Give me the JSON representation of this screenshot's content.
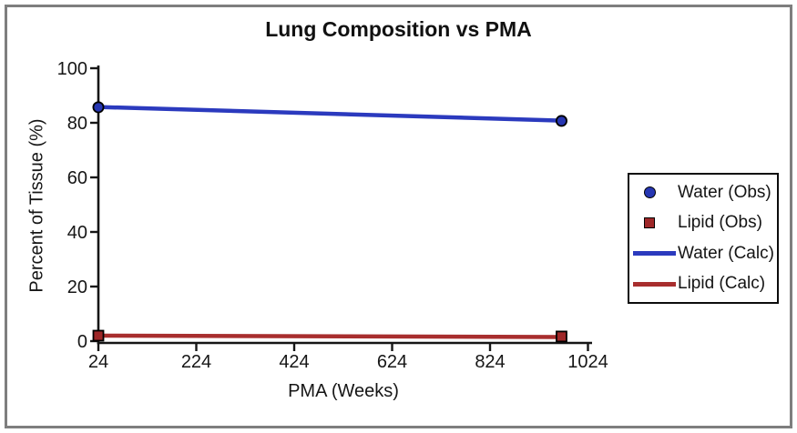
{
  "figure": {
    "background": "#ffffff",
    "border_color": "#7e7e7e"
  },
  "chart_data": {
    "type": "line",
    "title": "Lung Composition vs PMA",
    "xlabel": "PMA (Weeks)",
    "ylabel": "Percent of Tissue (%)",
    "xlim": [
      24,
      1024
    ],
    "ylim": [
      0,
      100
    ],
    "x_ticks": [
      24,
      224,
      424,
      624,
      824,
      1024
    ],
    "y_ticks": [
      0,
      20,
      40,
      60,
      80,
      100
    ],
    "grid": false,
    "legend_position": "right",
    "axis_color": "#161616",
    "series": [
      {
        "name": "Water (Obs)",
        "type": "scatter",
        "marker": "circle",
        "color": "#2636b2",
        "edge_color": "#000000",
        "points": [
          [
            24,
            85.7
          ],
          [
            970,
            80.7
          ]
        ]
      },
      {
        "name": "Lipid (Obs)",
        "type": "scatter",
        "marker": "square",
        "color": "#9e2728",
        "edge_color": "#000000",
        "points": [
          [
            24,
            2.0
          ],
          [
            970,
            1.7
          ]
        ]
      },
      {
        "name": "Water (Calc)",
        "type": "line",
        "color": "#2b3abe",
        "line_width": 4.5,
        "points": [
          [
            24,
            85.8
          ],
          [
            970,
            80.8
          ]
        ]
      },
      {
        "name": "Lipid (Calc)",
        "type": "line",
        "color": "#a82e2e",
        "line_width": 4.5,
        "points": [
          [
            24,
            2.0
          ],
          [
            970,
            1.5
          ]
        ]
      }
    ]
  }
}
